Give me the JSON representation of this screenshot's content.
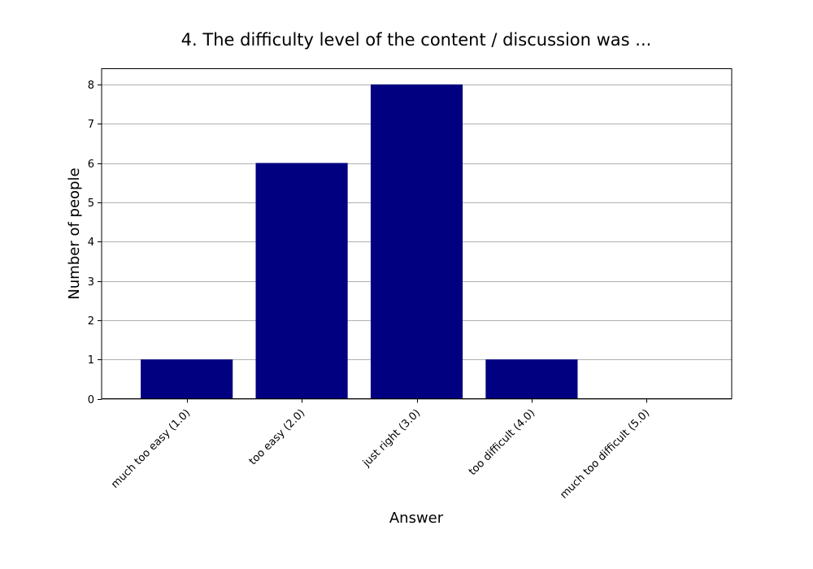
{
  "chart_data": {
    "type": "bar",
    "title": "4. The difficulty level of the content / discussion was ...",
    "xlabel": "Answer",
    "ylabel": "Number of people",
    "categories": [
      "much too easy (1.0)",
      "too easy (2.0)",
      "just right (3.0)",
      "too difficult (4.0)",
      "much too difficult (5.0)"
    ],
    "values": [
      1,
      6,
      8,
      1,
      0
    ],
    "ylim": [
      0,
      8.4
    ],
    "yticks": [
      0,
      1,
      2,
      3,
      4,
      5,
      6,
      7,
      8
    ],
    "grid": "y",
    "legend": "none",
    "bar_color": "#000080"
  }
}
